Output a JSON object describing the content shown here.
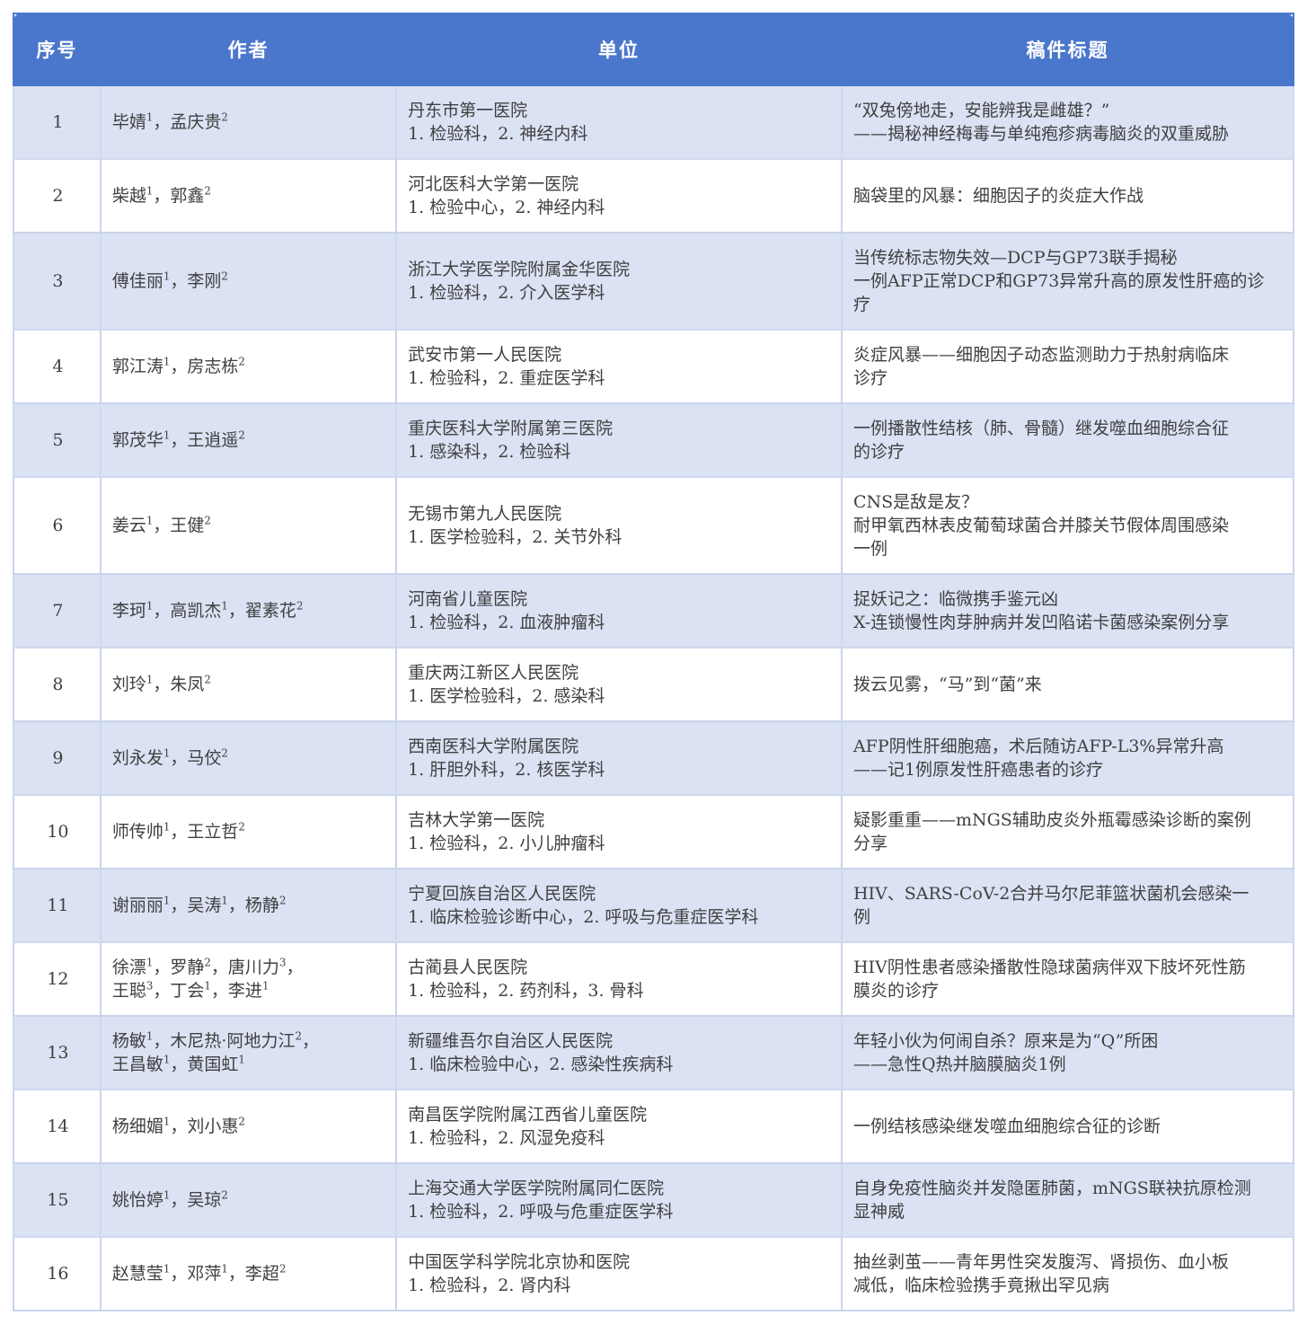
{
  "colors": {
    "header_bg": "#4a77cc",
    "header_text": "#ffffff",
    "row_alt_bg": "#dae2f3",
    "row_bg": "#ffffff",
    "border": "#c9d4ec",
    "text": "#404040"
  },
  "table": {
    "columns": [
      "序号",
      "作者",
      "单位",
      "稿件标题"
    ],
    "rows": [
      {
        "no": "1",
        "authors": [
          "毕婧^1，孟庆贵^2"
        ],
        "unit": [
          "丹东市第一医院",
          "1. 检验科，2. 神经内科"
        ],
        "title": [
          "“双兔傍地走，安能辨我是雌雄？”",
          "——揭秘神经梅毒与单纯疱疹病毒脑炎的双重威胁"
        ]
      },
      {
        "no": "2",
        "authors": [
          "柴越^1，郭鑫^2"
        ],
        "unit": [
          "河北医科大学第一医院",
          "1. 检验中心，2. 神经内科"
        ],
        "title": [
          "脑袋里的风暴：细胞因子的炎症大作战"
        ]
      },
      {
        "no": "3",
        "authors": [
          "傅佳丽^1，李刚^2"
        ],
        "unit": [
          "浙江大学医学院附属金华医院",
          "1. 检验科，2. 介入医学科"
        ],
        "title": [
          "当传统标志物失效—DCP与GP73联手揭秘",
          "一例AFP正常DCP和GP73异常升高的原发性肝癌的诊",
          "疗"
        ]
      },
      {
        "no": "4",
        "authors": [
          "郭江涛^1，房志栋^2"
        ],
        "unit": [
          "武安市第一人民医院",
          "1. 检验科，2. 重症医学科"
        ],
        "title": [
          "炎症风暴——细胞因子动态监测助力于热射病临床",
          "诊疗"
        ]
      },
      {
        "no": "5",
        "authors": [
          "郭茂华^1，王逍遥^2"
        ],
        "unit": [
          "重庆医科大学附属第三医院",
          "1. 感染科，2. 检验科"
        ],
        "title": [
          "一例播散性结核（肺、骨髓）继发噬血细胞综合征",
          "的诊疗"
        ]
      },
      {
        "no": "6",
        "authors": [
          "姜云^1，王健^2"
        ],
        "unit": [
          "无锡市第九人民医院",
          "1. 医学检验科，2. 关节外科"
        ],
        "title": [
          "CNS是敌是友？",
          "耐甲氧西林表皮葡萄球菌合并膝关节假体周围感染",
          "一例"
        ]
      },
      {
        "no": "7",
        "authors": [
          "李珂^1，高凯杰^1，翟素花^2"
        ],
        "unit": [
          "河南省儿童医院",
          "1. 检验科，2. 血液肿瘤科"
        ],
        "title": [
          "捉妖记之：临微携手鉴元凶",
          "X-连锁慢性肉芽肿病并发凹陷诺卡菌感染案例分享"
        ]
      },
      {
        "no": "8",
        "authors": [
          "刘玲^1，朱凤^2"
        ],
        "unit": [
          "重庆两江新区人民医院",
          "1. 医学检验科，2. 感染科"
        ],
        "title": [
          "拨云见雾，“马”到“菌”来"
        ]
      },
      {
        "no": "9",
        "authors": [
          "刘永发^1，马佼^2"
        ],
        "unit": [
          "西南医科大学附属医院",
          "1. 肝胆外科，2. 核医学科"
        ],
        "title": [
          "AFP阴性肝细胞癌，术后随访AFP-L3%异常升高",
          "——记1例原发性肝癌患者的诊疗"
        ]
      },
      {
        "no": "10",
        "authors": [
          "师传帅^1，王立哲^2"
        ],
        "unit": [
          "吉林大学第一医院",
          "1. 检验科，2. 小儿肿瘤科"
        ],
        "title": [
          "疑影重重——mNGS辅助皮炎外瓶霉感染诊断的案例",
          "分享"
        ]
      },
      {
        "no": "11",
        "authors": [
          "谢丽丽^1，吴涛^1，杨静^2"
        ],
        "unit": [
          "宁夏回族自治区人民医院",
          "1. 临床检验诊断中心，2. 呼吸与危重症医学科"
        ],
        "title": [
          "HIV、SARS-CoV-2合并马尔尼菲篮状菌机会感染一",
          "例"
        ]
      },
      {
        "no": "12",
        "authors": [
          "徐漂^1，罗静^2，唐川力^3，",
          "王聪^3，丁会^1，李进^1"
        ],
        "unit": [
          "古蔺县人民医院",
          "1. 检验科，2. 药剂科，3. 骨科"
        ],
        "title": [
          "HIV阴性患者感染播散性隐球菌病伴双下肢坏死性筋",
          "膜炎的诊疗"
        ]
      },
      {
        "no": "13",
        "authors": [
          "杨敏^1，木尼热·阿地力江^2，",
          "王昌敏^1，黄国虹^1"
        ],
        "unit": [
          "新疆维吾尔自治区人民医院",
          "1. 临床检验中心，2. 感染性疾病科"
        ],
        "title": [
          "年轻小伙为何闹自杀？原来是为“Q”所困",
          "——急性Q热并脑膜脑炎1例"
        ]
      },
      {
        "no": "14",
        "authors": [
          "杨细媚^1，刘小惠^2"
        ],
        "unit": [
          "南昌医学院附属江西省儿童医院",
          "1. 检验科，2. 风湿免疫科"
        ],
        "title": [
          "一例结核感染继发噬血细胞综合征的诊断"
        ]
      },
      {
        "no": "15",
        "authors": [
          "姚怡婷^1，吴琼^2"
        ],
        "unit": [
          "上海交通大学医学院附属同仁医院",
          "1. 检验科，2. 呼吸与危重症医学科"
        ],
        "title": [
          "自身免疫性脑炎并发隐匿肺菌，mNGS联袂抗原检测",
          "显神威"
        ]
      },
      {
        "no": "16",
        "authors": [
          "赵慧莹^1，邓萍^1，李超^2"
        ],
        "unit": [
          "中国医学科学院北京协和医院",
          "1. 检验科，2. 肾内科"
        ],
        "title": [
          "抽丝剥茧——青年男性突发腹泻、肾损伤、血小板",
          "减低，临床检验携手竟揪出罕见病"
        ]
      }
    ]
  }
}
